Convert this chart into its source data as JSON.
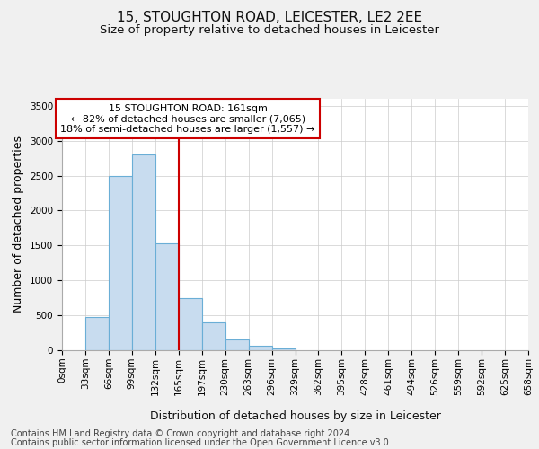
{
  "title": "15, STOUGHTON ROAD, LEICESTER, LE2 2EE",
  "subtitle": "Size of property relative to detached houses in Leicester",
  "xlabel": "Distribution of detached houses by size in Leicester",
  "ylabel": "Number of detached properties",
  "footer_line1": "Contains HM Land Registry data © Crown copyright and database right 2024.",
  "footer_line2": "Contains public sector information licensed under the Open Government Licence v3.0.",
  "bin_edges": [
    0,
    33,
    66,
    99,
    132,
    165,
    198,
    231,
    264,
    297,
    330,
    363,
    396,
    429,
    462,
    495,
    528,
    561,
    594,
    627,
    660
  ],
  "bin_labels": [
    "0sqm",
    "33sqm",
    "66sqm",
    "99sqm",
    "132sqm",
    "165sqm",
    "197sqm",
    "230sqm",
    "263sqm",
    "296sqm",
    "329sqm",
    "362sqm",
    "395sqm",
    "428sqm",
    "461sqm",
    "494sqm",
    "526sqm",
    "559sqm",
    "592sqm",
    "625sqm",
    "658sqm"
  ],
  "counts": [
    0,
    470,
    2500,
    2800,
    1525,
    750,
    400,
    150,
    60,
    30,
    0,
    0,
    0,
    0,
    0,
    0,
    0,
    0,
    0,
    0
  ],
  "bar_color": "#c8dcef",
  "bar_edge_color": "#6aaed6",
  "property_line_x": 165,
  "property_line_color": "#cc0000",
  "annotation_line1": "15 STOUGHTON ROAD: 161sqm",
  "annotation_line2": "← 82% of detached houses are smaller (7,065)",
  "annotation_line3": "18% of semi-detached houses are larger (1,557) →",
  "annotation_box_color": "#cc0000",
  "ylim": [
    0,
    3600
  ],
  "yticks": [
    0,
    500,
    1000,
    1500,
    2000,
    2500,
    3000,
    3500
  ],
  "background_color": "#f0f0f0",
  "plot_bg_color": "#ffffff",
  "grid_color": "#cccccc",
  "title_fontsize": 11,
  "subtitle_fontsize": 9.5,
  "axis_label_fontsize": 9,
  "tick_fontsize": 7.5,
  "annotation_fontsize": 8,
  "footer_fontsize": 7
}
